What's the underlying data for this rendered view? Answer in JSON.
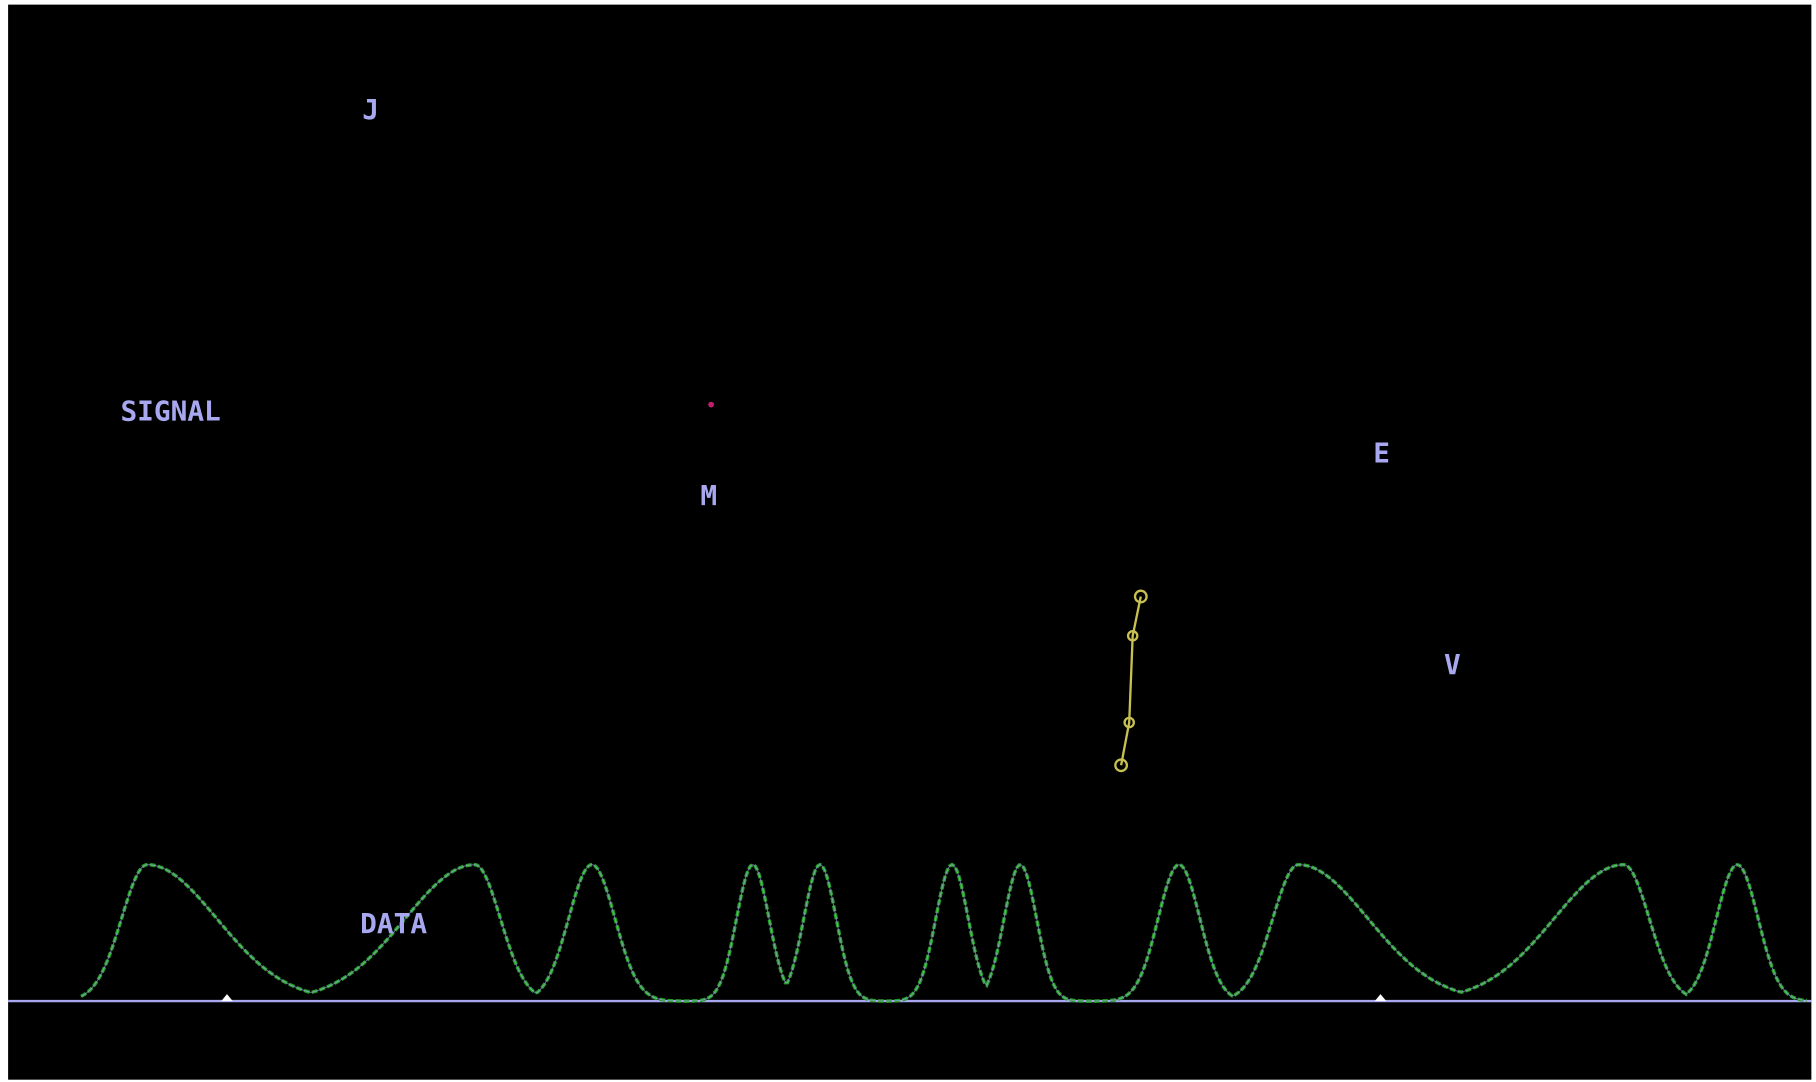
{
  "labels": {
    "j": "J",
    "signal": "SIGNAL",
    "m": "M",
    "e": "E",
    "v": "V",
    "data": "DATA"
  }
}
